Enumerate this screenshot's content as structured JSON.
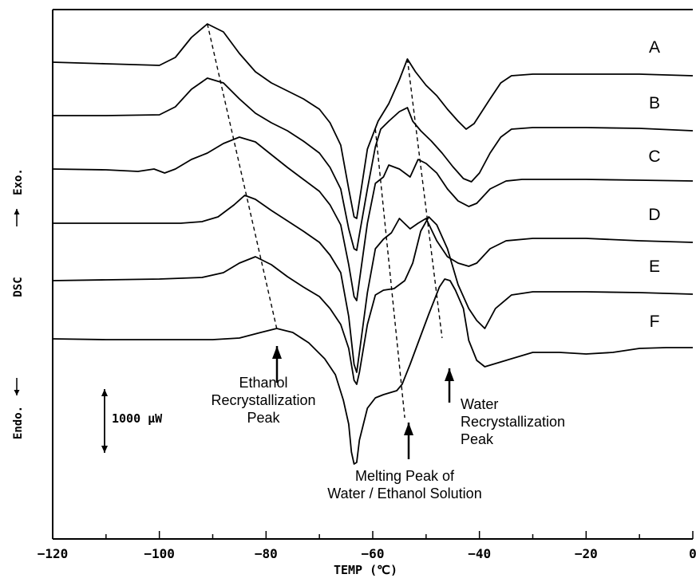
{
  "chart_data": {
    "type": "line",
    "title": "",
    "xlabel": "TEMP (℃)",
    "ylabel_parts": {
      "exo": "Exo.",
      "dsc": "DSC",
      "endo": "Endo."
    },
    "xlim": [
      -120,
      0
    ],
    "xticks": [
      {
        "value": -120,
        "label": "−120"
      },
      {
        "value": -100,
        "label": "−100"
      },
      {
        "value": -80,
        "label": "−80"
      },
      {
        "value": -60,
        "label": "−60"
      },
      {
        "value": -40,
        "label": "−40"
      },
      {
        "value": -20,
        "label": "−20"
      },
      {
        "value": 0,
        "label": "0"
      }
    ],
    "scale_bar_label": "1000 μW",
    "curve_labels": [
      "A",
      "B",
      "C",
      "D",
      "E",
      "F"
    ],
    "series": [
      {
        "name": "A",
        "points": [
          [
            -120,
            66
          ],
          [
            -110,
            68
          ],
          [
            -100,
            70
          ],
          [
            -97,
            60
          ],
          [
            -94,
            35
          ],
          [
            -91,
            18
          ],
          [
            -88,
            28
          ],
          [
            -85,
            55
          ],
          [
            -82,
            78
          ],
          [
            -79,
            92
          ],
          [
            -76,
            102
          ],
          [
            -73,
            112
          ],
          [
            -70,
            125
          ],
          [
            -68,
            142
          ],
          [
            -66,
            170
          ],
          [
            -64.5,
            225
          ],
          [
            -63.5,
            260
          ],
          [
            -63,
            262
          ],
          [
            -62.5,
            240
          ],
          [
            -61,
            175
          ],
          [
            -59,
            140
          ],
          [
            -57,
            118
          ],
          [
            -55,
            88
          ],
          [
            -53.5,
            62
          ],
          [
            -52,
            78
          ],
          [
            -50,
            95
          ],
          [
            -48,
            108
          ],
          [
            -46,
            125
          ],
          [
            -44,
            140
          ],
          [
            -42.5,
            150
          ],
          [
            -41,
            143
          ],
          [
            -38,
            112
          ],
          [
            -36,
            92
          ],
          [
            -34,
            83
          ],
          [
            -30,
            81
          ],
          [
            -20,
            81
          ],
          [
            -10,
            81
          ],
          [
            0,
            83
          ]
        ]
      },
      {
        "name": "B",
        "points": [
          [
            -120,
            133
          ],
          [
            -110,
            133
          ],
          [
            -100,
            132
          ],
          [
            -97,
            122
          ],
          [
            -94,
            100
          ],
          [
            -91,
            86
          ],
          [
            -88,
            92
          ],
          [
            -85,
            112
          ],
          [
            -82,
            130
          ],
          [
            -79,
            142
          ],
          [
            -76,
            152
          ],
          [
            -73,
            165
          ],
          [
            -70,
            180
          ],
          [
            -68,
            198
          ],
          [
            -66,
            225
          ],
          [
            -64.5,
            275
          ],
          [
            -63.5,
            300
          ],
          [
            -63,
            302
          ],
          [
            -62.5,
            282
          ],
          [
            -61,
            225
          ],
          [
            -59.5,
            172
          ],
          [
            -58.5,
            150
          ],
          [
            -57,
            140
          ],
          [
            -55,
            128
          ],
          [
            -53.5,
            123
          ],
          [
            -52.5,
            140
          ],
          [
            -51,
            152
          ],
          [
            -49,
            165
          ],
          [
            -47,
            180
          ],
          [
            -45,
            197
          ],
          [
            -43,
            212
          ],
          [
            -41.5,
            216
          ],
          [
            -40,
            205
          ],
          [
            -38,
            180
          ],
          [
            -36,
            160
          ],
          [
            -34,
            150
          ],
          [
            -30,
            148
          ],
          [
            -20,
            148
          ],
          [
            -10,
            149
          ],
          [
            0,
            152
          ]
        ]
      },
      {
        "name": "C",
        "points": [
          [
            -120,
            200
          ],
          [
            -110,
            201
          ],
          [
            -104,
            203
          ],
          [
            -101,
            200
          ],
          [
            -99,
            205
          ],
          [
            -97,
            200
          ],
          [
            -94,
            188
          ],
          [
            -91,
            180
          ],
          [
            -88,
            168
          ],
          [
            -85,
            160
          ],
          [
            -82,
            166
          ],
          [
            -79,
            182
          ],
          [
            -76,
            198
          ],
          [
            -73,
            213
          ],
          [
            -70,
            228
          ],
          [
            -68,
            245
          ],
          [
            -66,
            270
          ],
          [
            -64.5,
            320
          ],
          [
            -63.5,
            360
          ],
          [
            -63,
            365
          ],
          [
            -62.5,
            340
          ],
          [
            -61,
            268
          ],
          [
            -59.5,
            218
          ],
          [
            -58,
            210
          ],
          [
            -57,
            195
          ],
          [
            -55,
            200
          ],
          [
            -53,
            210
          ],
          [
            -51.5,
            188
          ],
          [
            -50,
            193
          ],
          [
            -48,
            205
          ],
          [
            -46,
            225
          ],
          [
            -44,
            240
          ],
          [
            -42,
            247
          ],
          [
            -40.5,
            243
          ],
          [
            -38,
            225
          ],
          [
            -35,
            215
          ],
          [
            -32,
            213
          ],
          [
            -20,
            213
          ],
          [
            -10,
            214
          ],
          [
            0,
            215
          ]
        ]
      },
      {
        "name": "D",
        "points": [
          [
            -120,
            268
          ],
          [
            -110,
            268
          ],
          [
            -100,
            268
          ],
          [
            -96,
            268
          ],
          [
            -92,
            266
          ],
          [
            -89,
            260
          ],
          [
            -86,
            245
          ],
          [
            -84,
            233
          ],
          [
            -82,
            238
          ],
          [
            -79,
            252
          ],
          [
            -76,
            265
          ],
          [
            -73,
            278
          ],
          [
            -70,
            292
          ],
          [
            -68,
            308
          ],
          [
            -66,
            330
          ],
          [
            -64.5,
            385
          ],
          [
            -63.5,
            445
          ],
          [
            -63,
            455
          ],
          [
            -62.5,
            430
          ],
          [
            -61,
            355
          ],
          [
            -59.5,
            300
          ],
          [
            -58,
            288
          ],
          [
            -56.5,
            280
          ],
          [
            -55,
            262
          ],
          [
            -53,
            275
          ],
          [
            -51.5,
            268
          ],
          [
            -50,
            262
          ],
          [
            -48,
            290
          ],
          [
            -46,
            310
          ],
          [
            -44,
            318
          ],
          [
            -42,
            322
          ],
          [
            -40.5,
            318
          ],
          [
            -38,
            300
          ],
          [
            -35,
            290
          ],
          [
            -30,
            287
          ],
          [
            -20,
            287
          ],
          [
            -10,
            290
          ],
          [
            0,
            292
          ]
        ]
      },
      {
        "name": "E",
        "points": [
          [
            -120,
            340
          ],
          [
            -110,
            339
          ],
          [
            -100,
            338
          ],
          [
            -96,
            337
          ],
          [
            -92,
            336
          ],
          [
            -88,
            330
          ],
          [
            -85,
            318
          ],
          [
            -82,
            310
          ],
          [
            -79,
            320
          ],
          [
            -76,
            335
          ],
          [
            -73,
            348
          ],
          [
            -70,
            360
          ],
          [
            -68,
            375
          ],
          [
            -66,
            395
          ],
          [
            -64.5,
            425
          ],
          [
            -63.5,
            465
          ],
          [
            -63,
            470
          ],
          [
            -62.5,
            455
          ],
          [
            -61,
            395
          ],
          [
            -59.5,
            358
          ],
          [
            -58,
            352
          ],
          [
            -56,
            350
          ],
          [
            -54,
            340
          ],
          [
            -52.5,
            318
          ],
          [
            -51,
            278
          ],
          [
            -49.5,
            260
          ],
          [
            -48,
            270
          ],
          [
            -46,
            300
          ],
          [
            -44,
            345
          ],
          [
            -42,
            375
          ],
          [
            -40.5,
            390
          ],
          [
            -39,
            400
          ],
          [
            -37,
            375
          ],
          [
            -34,
            358
          ],
          [
            -30,
            354
          ],
          [
            -20,
            354
          ],
          [
            -10,
            355
          ],
          [
            0,
            357
          ]
        ]
      },
      {
        "name": "F",
        "points": [
          [
            -120,
            413
          ],
          [
            -110,
            414
          ],
          [
            -100,
            414
          ],
          [
            -90,
            414
          ],
          [
            -85,
            412
          ],
          [
            -81,
            405
          ],
          [
            -78,
            400
          ],
          [
            -75,
            405
          ],
          [
            -72,
            418
          ],
          [
            -69,
            438
          ],
          [
            -67,
            458
          ],
          [
            -65.5,
            490
          ],
          [
            -64.5,
            520
          ],
          [
            -64,
            555
          ],
          [
            -63.5,
            570
          ],
          [
            -63,
            568
          ],
          [
            -62.5,
            540
          ],
          [
            -61,
            500
          ],
          [
            -59.5,
            487
          ],
          [
            -58,
            483
          ],
          [
            -56.5,
            480
          ],
          [
            -55.5,
            478
          ],
          [
            -54.5,
            470
          ],
          [
            -53,
            445
          ],
          [
            -51.5,
            418
          ],
          [
            -50.5,
            400
          ],
          [
            -49.5,
            382
          ],
          [
            -48.5,
            365
          ],
          [
            -47.5,
            348
          ],
          [
            -46.5,
            338
          ],
          [
            -45.5,
            340
          ],
          [
            -44.5,
            352
          ],
          [
            -43,
            375
          ],
          [
            -42,
            415
          ],
          [
            -40.5,
            440
          ],
          [
            -39,
            448
          ],
          [
            -37.5,
            445
          ],
          [
            -35,
            440
          ],
          [
            -30,
            430
          ],
          [
            -25,
            430
          ],
          [
            -20,
            432
          ],
          [
            -15,
            430
          ],
          [
            -10,
            425
          ],
          [
            -5,
            424
          ],
          [
            0,
            424
          ]
        ]
      }
    ],
    "peak_trend_lines": [
      {
        "name": "ethanol-recrystallization",
        "points": [
          [
            -91,
            18
          ],
          [
            -78,
            400
          ]
        ]
      },
      {
        "name": "water-ethanol-melting",
        "points": [
          [
            -59.5,
            150
          ],
          [
            -54,
            512
          ]
        ]
      },
      {
        "name": "water-recrystallization",
        "points": [
          [
            -53.5,
            62
          ],
          [
            -47,
            412
          ]
        ]
      }
    ],
    "annotations": [
      {
        "lines": [
          "Ethanol",
          "Recrystallization",
          "Peak"
        ]
      },
      {
        "lines": [
          "Water",
          "Recrystallization",
          "Peak"
        ]
      },
      {
        "lines": [
          "Melting Peak of",
          "Water / Ethanol Solution"
        ]
      }
    ]
  }
}
